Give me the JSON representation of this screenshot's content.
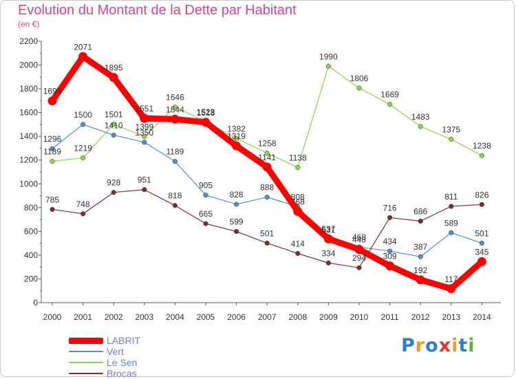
{
  "title": "Evolution du Montant de la Dette par Habitant",
  "subtitle": "(en €)",
  "logo": {
    "letters": [
      "P",
      "r",
      "o",
      "x",
      "i",
      "t",
      "i"
    ],
    "colors": [
      "#2f7fd0",
      "#f39a1e",
      "#2f7fd0",
      "#e5342b",
      "#f39a1e",
      "#2f7fd0",
      "#58b72c"
    ]
  },
  "chart_data": {
    "type": "line",
    "title": "Evolution du Montant de la Dette par Habitant",
    "subtitle": "(en €)",
    "xlabel": "",
    "ylabel": "",
    "categories": [
      "2000",
      "2001",
      "2002",
      "2003",
      "2004",
      "2005",
      "2006",
      "2007",
      "2008",
      "2009",
      "2010",
      "2011",
      "2012",
      "2013",
      "2014"
    ],
    "ylim": [
      0,
      2200
    ],
    "yticks": [
      0,
      200,
      400,
      600,
      800,
      1000,
      1200,
      1400,
      1600,
      1800,
      2000,
      2200
    ],
    "grid": false,
    "legend_position": "bottom-left",
    "series": [
      {
        "name": "LABRIT",
        "color": "#ff0000",
        "values": [
          1698,
          2071,
          1895,
          1551,
          1544,
          1518,
          1319,
          1141,
          768,
          537,
          448,
          309,
          192,
          117,
          345
        ]
      },
      {
        "name": "Vert",
        "color": "#4e8fcc",
        "values": [
          1296,
          1500,
          1410,
          1350,
          1189,
          905,
          828,
          888,
          808,
          531,
          468,
          434,
          387,
          589,
          501
        ]
      },
      {
        "name": "Le Sen",
        "color": "#8ed44b",
        "values": [
          1189,
          1219,
          1501,
          1399,
          1646,
          1523,
          1382,
          1258,
          1138,
          1990,
          1806,
          1669,
          1483,
          1375,
          1238
        ]
      },
      {
        "name": "Brocas",
        "color": "#7a2e2e",
        "values": [
          785,
          748,
          928,
          951,
          818,
          665,
          599,
          501,
          414,
          334,
          294,
          716,
          686,
          811,
          826
        ]
      }
    ]
  }
}
